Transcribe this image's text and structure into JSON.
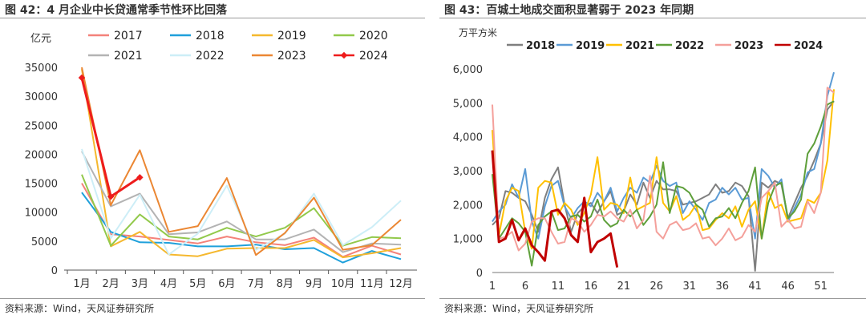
{
  "chart_data": [
    {
      "type": "line",
      "title": "图 42：4 月企业中长贷通常季节性环比回落",
      "ylabel": "亿元",
      "source": "资料来源：Wind，天风证券研究所",
      "categories": [
        "1月",
        "2月",
        "3月",
        "4月",
        "5月",
        "6月",
        "7月",
        "8月",
        "9月",
        "10月",
        "11月",
        "12月"
      ],
      "ylim": [
        0,
        35000
      ],
      "yticks": [
        "0",
        "5000",
        "10000",
        "15000",
        "20000",
        "25000",
        "30000",
        "35000"
      ],
      "legend_position": "top",
      "series": [
        {
          "name": "2017",
          "color": "#F4827A",
          "values": [
            15000,
            6200,
            5800,
            5200,
            4600,
            5800,
            4800,
            4300,
            5600,
            2300,
            4200,
            2700
          ]
        },
        {
          "name": "2018",
          "color": "#1FA0DB",
          "values": [
            13400,
            6600,
            4800,
            4700,
            4100,
            4100,
            4400,
            3600,
            3800,
            1300,
            3300,
            1900
          ]
        },
        {
          "name": "2019",
          "color": "#F5B82E",
          "values": [
            34700,
            4100,
            6600,
            2700,
            2400,
            3700,
            3800,
            3800,
            5200,
            2200,
            2900,
            3800
          ]
        },
        {
          "name": "2020",
          "color": "#92C94B",
          "values": [
            16500,
            4200,
            9600,
            5800,
            5300,
            7300,
            5800,
            7300,
            10700,
            4200,
            5700,
            5500
          ]
        },
        {
          "name": "2021",
          "color": "#B3B3B3",
          "values": [
            20500,
            11000,
            13200,
            6200,
            6500,
            8400,
            5300,
            5300,
            7000,
            3100,
            4600,
            4400
          ]
        },
        {
          "name": "2022",
          "color": "#CDEEF7",
          "values": [
            20900,
            5500,
            13000,
            2700,
            6300,
            14600,
            3500,
            6300,
            13200,
            4300,
            7400,
            12000
          ]
        },
        {
          "name": "2023",
          "color": "#EB8733",
          "values": [
            35500,
            11200,
            20700,
            6600,
            7600,
            15900,
            2600,
            6400,
            12500,
            3500,
            4300,
            8700
          ]
        },
        {
          "name": "2024",
          "color": "#EE1C1C",
          "values": [
            33200,
            12700,
            16000,
            null,
            null,
            null,
            null,
            null,
            null,
            null,
            null,
            null
          ]
        }
      ]
    },
    {
      "type": "line",
      "title": "图 43：百城土地成交面积显著弱于 2023 年同期",
      "ylabel": "万平方米",
      "source": "资料来源：Wind，天风证券研究所",
      "xticks": [
        1,
        6,
        11,
        16,
        21,
        26,
        31,
        36,
        41,
        46,
        51
      ],
      "xlim": [
        1,
        53
      ],
      "ylim": [
        0,
        6000
      ],
      "yticks": [
        "0",
        "1,000",
        "2,000",
        "3,000",
        "4,000",
        "5,000",
        "6,000"
      ],
      "legend_position": "top",
      "series": [
        {
          "name": "2018",
          "color": "#7F7F7F",
          "values": [
            1400,
            1600,
            2400,
            2350,
            2200,
            2100,
            1700,
            1200,
            2200,
            2750,
            3100,
            2000,
            1200,
            1750,
            1950,
            2050,
            1750,
            2100,
            2400,
            1700,
            1800,
            2300,
            2000,
            2650,
            2200,
            2700,
            2450,
            2450,
            2400,
            2000,
            2050,
            2100,
            2200,
            2300,
            2600,
            2350,
            2400,
            2650,
            2550,
            2250,
            50,
            2650,
            2500,
            2700,
            2600,
            1600,
            2050,
            2500,
            2850,
            3300,
            3800,
            4800,
            5050
          ]
        },
        {
          "name": "2019",
          "color": "#5B9BD5",
          "values": [
            1500,
            1800,
            2000,
            2600,
            2200,
            3050,
            1500,
            1000,
            1950,
            2550,
            2700,
            1950,
            1600,
            1900,
            2100,
            1950,
            2350,
            2100,
            2500,
            1800,
            2200,
            2500,
            2350,
            2800,
            2650,
            3150,
            2700,
            2550,
            2650,
            1750,
            2100,
            1850,
            1550,
            2050,
            2150,
            2500,
            2300,
            2500,
            2150,
            2200,
            1000,
            3050,
            2850,
            2500,
            2750,
            1500,
            1900,
            2300,
            2950,
            3050,
            3800,
            5200,
            5900
          ]
        },
        {
          "name": "2021",
          "color": "#FFC000",
          "values": [
            4200,
            1100,
            2100,
            2500,
            2400,
            1200,
            700,
            2500,
            2700,
            2650,
            1700,
            2050,
            1850,
            1400,
            1750,
            2300,
            3400,
            1850,
            2050,
            2000,
            1750,
            2800,
            1850,
            1950,
            2050,
            3400,
            2050,
            1800,
            2250,
            1550,
            1700,
            2000,
            1250,
            1300,
            1550,
            1750,
            1600,
            1950,
            1350,
            1850,
            2100,
            1000,
            2400,
            1900,
            2000,
            1500,
            1550,
            1600,
            2150,
            2050,
            2350,
            3300,
            5400
          ]
        },
        {
          "name": "2022",
          "color": "#5E9F3A",
          "values": [
            2900,
            1000,
            1300,
            1600,
            1450,
            1200,
            200,
            1400,
            1650,
            1800,
            1250,
            1300,
            1650,
            1700,
            1500,
            1650,
            2150,
            1550,
            1350,
            1450,
            1850,
            1650,
            1850,
            1400,
            1650,
            2000,
            3250,
            1750,
            2550,
            2500,
            2350,
            2000,
            1850,
            1350,
            1600,
            1650,
            1900,
            1600,
            2050,
            2400,
            3100,
            1000,
            2050,
            2550,
            2650,
            1600,
            1800,
            2150,
            3500,
            3800,
            4300,
            4950,
            5050
          ]
        },
        {
          "name": "2023",
          "color": "#F4A09B",
          "values": [
            4950,
            1000,
            1050,
            1200,
            650,
            850,
            1500,
            1600,
            1600,
            1200,
            850,
            900,
            1600,
            1500,
            1200,
            1400,
            1700,
            1650,
            1800,
            1600,
            1500,
            1850,
            1300,
            1550,
            2850,
            1200,
            1000,
            1400,
            1500,
            1250,
            1300,
            1450,
            1000,
            1050,
            800,
            1000,
            1300,
            950,
            1050,
            1400,
            1200,
            2200,
            2400,
            2650,
            1350,
            1550,
            1300,
            1350,
            2100,
            1750,
            2350,
            5450,
            5300
          ]
        },
        {
          "name": "2024",
          "color": "#C00000",
          "values": [
            3600,
            900,
            1000,
            1550,
            950,
            1300,
            800,
            600,
            350,
            1800,
            1850,
            1600,
            1100,
            900,
            2200,
            600,
            900,
            1000,
            1150,
            150,
            null,
            null,
            null,
            null,
            null,
            null,
            null,
            null,
            null,
            null,
            null,
            null,
            null,
            null,
            null,
            null,
            null,
            null,
            null,
            null,
            null,
            null,
            null,
            null,
            null,
            null,
            null,
            null,
            null,
            null,
            null,
            null,
            null
          ]
        }
      ]
    }
  ]
}
